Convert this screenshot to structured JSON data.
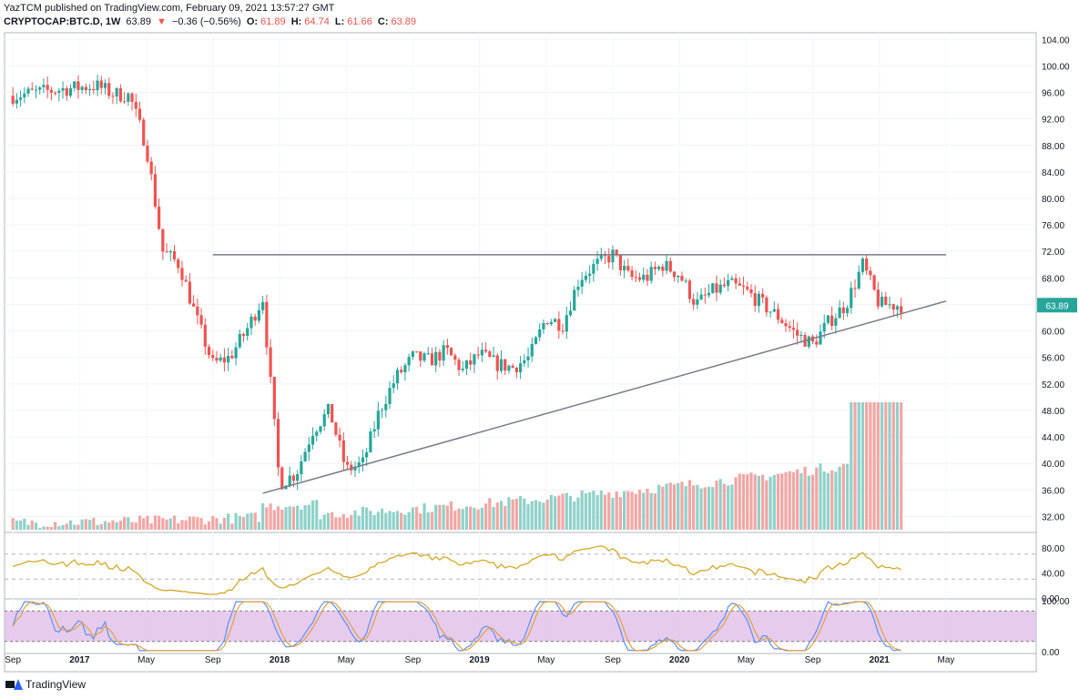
{
  "header": {
    "line1": "YazTCM published on TradingView.com, February 09, 2021 13:57:27 GMT",
    "symbol": "CRYPTOCAP:BTC.D, 1W",
    "last": "63.89",
    "arrow": "▼",
    "change": "−0.36 (−0.56%)",
    "o_label": "O:",
    "o_val": "61.89",
    "h_label": "H:",
    "h_val": "64.74",
    "l_label": "L:",
    "l_val": "61.66",
    "c_label": "C:",
    "c_val": "63.89"
  },
  "footer": {
    "brand": "TradingView"
  },
  "colors": {
    "up": "#26a69a",
    "down": "#ef5350",
    "rsi": "#d4a82a",
    "stoch_k": "#5b8ff9",
    "stoch_d": "#e0a040",
    "stoch_band": "#e1bee7",
    "trendline": "#787b86",
    "price_tag": "#26a69a"
  },
  "chart_data": {
    "type": "candlestick",
    "title": "",
    "last_price_label": "63.89",
    "price_axis": {
      "ylim": [
        30,
        105
      ],
      "ticks": [
        "104.00",
        "100.00",
        "96.00",
        "92.00",
        "88.00",
        "84.00",
        "80.00",
        "76.00",
        "72.00",
        "68.00",
        "64.00",
        "60.00",
        "56.00",
        "52.00",
        "48.00",
        "44.00",
        "40.00",
        "36.00",
        "32.00"
      ]
    },
    "time_axis": {
      "ticks": [
        "Sep",
        "2017",
        "May",
        "Sep",
        "2018",
        "May",
        "Sep",
        "2019",
        "May",
        "Sep",
        "2020",
        "May",
        "Sep",
        "2021",
        "May"
      ]
    },
    "price_anchors": {
      "dates": [
        "2016-09",
        "2016-12",
        "2017-02",
        "2017-03",
        "2017-04",
        "2017-05",
        "2017-06",
        "2017-07",
        "2017-08",
        "2017-09",
        "2017-10",
        "2017-11",
        "2017-12",
        "2018-01",
        "2018-02",
        "2018-03",
        "2018-04",
        "2018-05",
        "2018-06",
        "2018-07",
        "2018-08",
        "2018-09",
        "2018-10",
        "2018-11",
        "2018-12",
        "2019-01",
        "2019-02",
        "2019-03",
        "2019-04",
        "2019-05",
        "2019-06",
        "2019-07",
        "2019-08",
        "2019-09",
        "2019-10",
        "2019-11",
        "2019-12",
        "2020-01",
        "2020-02",
        "2020-03",
        "2020-04",
        "2020-05",
        "2020-06",
        "2020-07",
        "2020-08",
        "2020-09",
        "2020-10",
        "2020-11",
        "2020-12",
        "2021-01",
        "2021-02"
      ],
      "values": [
        95.5,
        96.5,
        97.0,
        95.8,
        95.5,
        88.0,
        72.0,
        70.0,
        62.0,
        55.0,
        56.0,
        60.0,
        65.0,
        37.0,
        38.5,
        45.0,
        48.0,
        39.0,
        40.0,
        48.0,
        53.0,
        56.0,
        55.5,
        57.0,
        54.0,
        56.5,
        55.0,
        54.5,
        56.0,
        62.0,
        61.0,
        68.0,
        70.0,
        71.5,
        68.0,
        68.0,
        70.0,
        68.5,
        64.0,
        66.0,
        67.0,
        66.0,
        64.0,
        62.0,
        59.5,
        58.0,
        61.5,
        64.0,
        70.0,
        64.0,
        63.89
      ]
    },
    "horizontal_resistance": {
      "value": 71.5,
      "from": "2017-09",
      "to": "2021-05"
    },
    "ascending_trendline": {
      "from": {
        "date": "2017-12",
        "value": 35.5
      },
      "to": {
        "date": "2021-05",
        "value": 64.5
      }
    },
    "rsi": {
      "ticks": [
        "80.00",
        "40.00",
        "0.00"
      ],
      "levels": [
        70,
        30
      ],
      "range": [
        0,
        100
      ]
    },
    "stoch_rsi": {
      "ticks": [
        "100.00",
        "0.00"
      ],
      "band": [
        20,
        80
      ],
      "range": [
        0,
        100
      ]
    }
  }
}
